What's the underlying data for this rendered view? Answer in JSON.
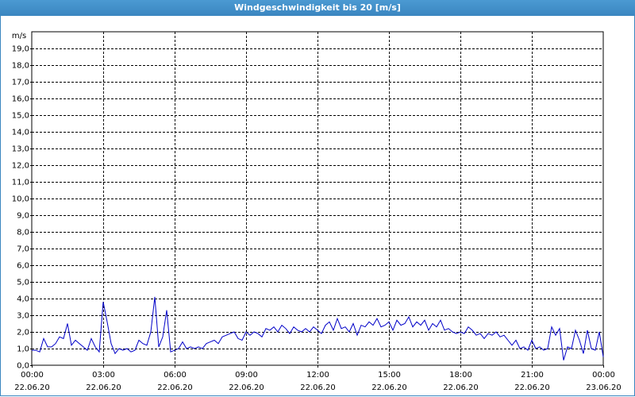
{
  "chart_data": {
    "type": "line",
    "title": "Windgeschwindigkeit bis 20 [m/s]",
    "y_label": "m/s",
    "x": [
      0,
      10,
      20,
      30,
      40,
      50,
      60,
      70,
      80,
      90,
      100,
      110,
      120,
      130,
      140,
      150,
      160,
      170,
      180,
      190,
      200,
      210,
      220,
      230,
      240,
      250,
      260,
      270,
      280,
      290,
      300,
      310,
      320,
      330,
      340,
      350,
      360,
      370,
      380,
      390,
      400,
      410,
      420,
      430,
      440,
      450,
      460,
      470,
      480,
      490,
      500,
      510,
      520,
      530,
      540,
      550,
      560,
      570,
      580,
      590,
      600,
      610,
      620,
      630,
      640,
      650,
      660,
      670,
      680,
      690,
      700,
      710,
      720,
      730,
      740,
      750,
      760,
      770,
      780,
      790,
      800,
      810,
      820,
      830,
      840,
      850,
      860,
      870,
      880,
      890,
      900,
      910,
      920,
      930,
      940,
      950,
      960,
      970,
      980,
      990,
      1000,
      1010,
      1020,
      1030,
      1040,
      1050,
      1060,
      1070,
      1080,
      1090,
      1100,
      1110,
      1120,
      1130,
      1140,
      1150,
      1160,
      1170,
      1180,
      1190,
      1200,
      1210,
      1220,
      1230,
      1240,
      1250,
      1260,
      1270,
      1280,
      1290,
      1300,
      1310,
      1320,
      1330,
      1340,
      1350,
      1360,
      1370,
      1380,
      1390,
      1400,
      1410,
      1420,
      1430,
      1440
    ],
    "series": [
      {
        "name": "Windgeschwindigkeit",
        "color": "#0000c8",
        "values": [
          0.9,
          0.9,
          0.8,
          1.6,
          1.1,
          1.1,
          1.3,
          1.7,
          1.6,
          2.5,
          1.2,
          1.5,
          1.3,
          1.1,
          0.9,
          1.6,
          1.1,
          0.8,
          3.8,
          2.6,
          1.3,
          0.7,
          1.0,
          0.9,
          1.0,
          0.8,
          0.9,
          1.5,
          1.3,
          1.2,
          2.0,
          4.1,
          1.1,
          1.7,
          3.3,
          0.8,
          0.9,
          1.0,
          1.4,
          1.0,
          1.1,
          1.0,
          1.1,
          1.0,
          1.3,
          1.4,
          1.5,
          1.3,
          1.7,
          1.8,
          1.9,
          2.0,
          1.6,
          1.5,
          2.0,
          1.8,
          2.0,
          1.9,
          1.7,
          2.2,
          2.1,
          2.3,
          2.0,
          2.4,
          2.2,
          1.9,
          2.3,
          2.1,
          2.0,
          2.2,
          2.0,
          2.3,
          2.1,
          1.9,
          2.4,
          2.6,
          2.1,
          2.8,
          2.2,
          2.3,
          2.0,
          2.5,
          1.8,
          2.4,
          2.3,
          2.6,
          2.4,
          2.8,
          2.3,
          2.4,
          2.6,
          2.1,
          2.7,
          2.4,
          2.5,
          2.9,
          2.3,
          2.6,
          2.4,
          2.7,
          2.1,
          2.5,
          2.3,
          2.7,
          2.1,
          2.2,
          2.0,
          1.9,
          2.0,
          1.9,
          2.3,
          2.1,
          1.8,
          1.9,
          1.6,
          1.9,
          1.8,
          2.0,
          1.7,
          1.8,
          1.5,
          1.2,
          1.5,
          1.0,
          1.1,
          0.9,
          1.5,
          1.0,
          1.1,
          0.9,
          1.0,
          2.3,
          1.8,
          2.2,
          0.3,
          1.1,
          1.0,
          2.1,
          1.5,
          0.7,
          2.1,
          1.0,
          0.9,
          2.0,
          0.5
        ]
      }
    ],
    "xlim": [
      0,
      1440
    ],
    "xticks": [
      {
        "value": 0,
        "label": "00:00\n22.06.20"
      },
      {
        "value": 180,
        "label": "03:00\n22.06.20"
      },
      {
        "value": 360,
        "label": "06:00\n22.06.20"
      },
      {
        "value": 540,
        "label": "09:00\n22.06.20"
      },
      {
        "value": 720,
        "label": "12:00\n22.06.20"
      },
      {
        "value": 900,
        "label": "15:00\n22.06.20"
      },
      {
        "value": 1080,
        "label": "18:00\n22.06.20"
      },
      {
        "value": 1260,
        "label": "21:00\n22.06.20"
      },
      {
        "value": 1440,
        "label": "00:00\n23.06.20"
      }
    ],
    "ylim": [
      0,
      20
    ],
    "yticks": [
      {
        "value": 0,
        "label": "0,0"
      },
      {
        "value": 1,
        "label": "1,0"
      },
      {
        "value": 2,
        "label": "2,0"
      },
      {
        "value": 3,
        "label": "3,0"
      },
      {
        "value": 4,
        "label": "4,0"
      },
      {
        "value": 5,
        "label": "5,0"
      },
      {
        "value": 6,
        "label": "6,0"
      },
      {
        "value": 7,
        "label": "7,0"
      },
      {
        "value": 8,
        "label": "8,0"
      },
      {
        "value": 9,
        "label": "9,0"
      },
      {
        "value": 10,
        "label": "10,0"
      },
      {
        "value": 11,
        "label": "11,0"
      },
      {
        "value": 12,
        "label": "12,0"
      },
      {
        "value": 13,
        "label": "13,0"
      },
      {
        "value": 14,
        "label": "14,0"
      },
      {
        "value": 15,
        "label": "15,0"
      },
      {
        "value": 16,
        "label": "16,0"
      },
      {
        "value": 17,
        "label": "17,0"
      },
      {
        "value": 18,
        "label": "18,0"
      },
      {
        "value": 19,
        "label": "19,0"
      }
    ],
    "grid": true
  }
}
